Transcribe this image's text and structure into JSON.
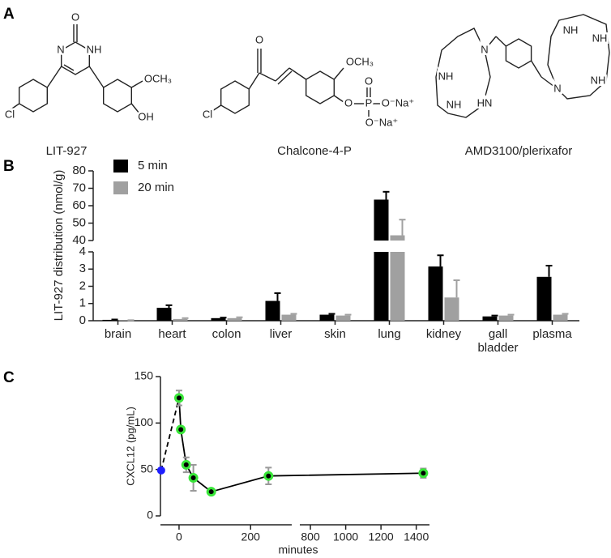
{
  "panel_labels": [
    "A",
    "B",
    "C"
  ],
  "structures": [
    {
      "name": "LIT-927",
      "atoms": [
        "O",
        "N",
        "NH",
        "OCH₃",
        "OH",
        "Cl"
      ]
    },
    {
      "name": "Chalcone-4-P",
      "atoms": [
        "O",
        "Cl",
        "OCH₃",
        "O",
        "P",
        "O",
        "O⁻Na⁺",
        "O⁻Na⁺"
      ]
    },
    {
      "name": "AMD3100/plerixafor",
      "atoms": [
        "NH",
        "N",
        "NH",
        "HN",
        "NH",
        "NH",
        "N",
        "NH"
      ]
    }
  ],
  "chart_data": [
    {
      "type": "bar",
      "ylabel": "LIT-927 distribution (nmol/g)",
      "categories": [
        "brain",
        "heart",
        "colon",
        "liver",
        "skin",
        "lung",
        "kidney",
        "gall\nbladder",
        "plasma"
      ],
      "series": [
        {
          "name": "5 min",
          "color": "#000000",
          "values": [
            0.05,
            0.75,
            0.15,
            1.15,
            0.35,
            63.5,
            3.15,
            0.25,
            2.55
          ],
          "errors": [
            0.02,
            0.15,
            0.03,
            0.45,
            0.05,
            4.5,
            0.65,
            0.05,
            0.65
          ]
        },
        {
          "name": "20 min",
          "color": "#a0a0a0",
          "values": [
            0.02,
            0.1,
            0.15,
            0.35,
            0.3,
            43,
            1.35,
            0.3,
            0.35
          ],
          "errors": [
            0.01,
            0.05,
            0.05,
            0.05,
            0.05,
            9,
            1.0,
            0.05,
            0.05
          ]
        }
      ],
      "y_segments": [
        {
          "ylim": [
            0,
            4
          ],
          "yticks": [
            0,
            1,
            2,
            3,
            4
          ]
        },
        {
          "ylim": [
            40,
            80
          ],
          "yticks": [
            40,
            50,
            60,
            70,
            80
          ]
        }
      ],
      "legend": "upper left"
    },
    {
      "type": "line",
      "xlabel": "minutes",
      "ylabel": "CXCL12 (pg/mL)",
      "x": [
        -50,
        0,
        5,
        20,
        40,
        90,
        250,
        1440
      ],
      "values": [
        49,
        127,
        93,
        55,
        41,
        26,
        43,
        46
      ],
      "errors": [
        null,
        8,
        null,
        8,
        14,
        2,
        9,
        5
      ],
      "colors": {
        "baseline": "#1f1fff",
        "points": "#39e639",
        "line": "#000000",
        "errorbar": "#999999"
      },
      "ylim": [
        0,
        150
      ],
      "yticks": [
        0,
        50,
        100,
        150
      ],
      "x_segments": [
        {
          "xlim": [
            -52,
            315
          ],
          "xticks": [
            0,
            200
          ]
        },
        {
          "xlim": [
            740,
            1475
          ],
          "xticks": [
            800,
            1000,
            1200,
            1400
          ]
        }
      ]
    }
  ]
}
